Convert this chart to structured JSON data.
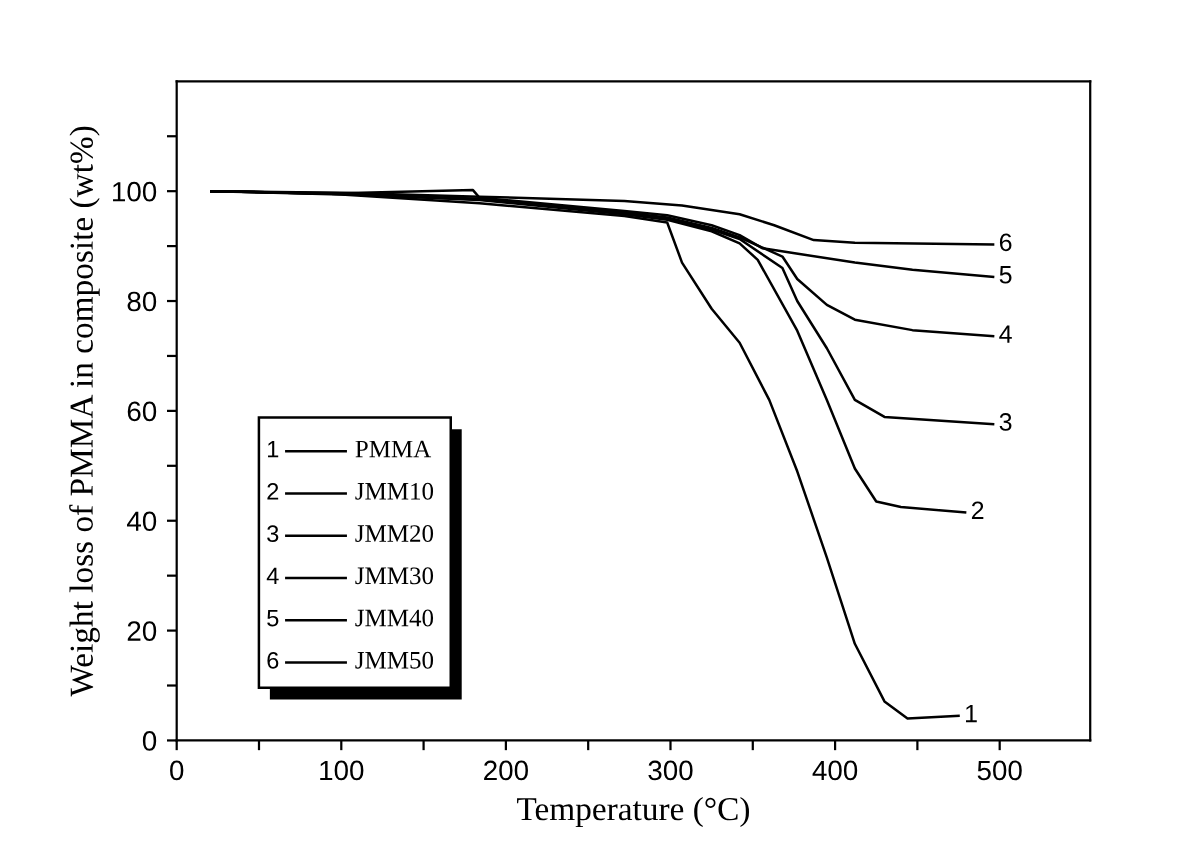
{
  "chart_data": {
    "type": "line",
    "xlabel": "Temperature (°C)",
    "ylabel": "Weight loss of PMMA in composite (wt%)",
    "xlim": [
      0,
      555
    ],
    "ylim": [
      0,
      120
    ],
    "xticks": [
      0,
      {
        "value": 50,
        "label": null
      },
      100,
      {
        "value": 150,
        "label": null
      },
      200,
      {
        "value": 250,
        "label": null
      },
      300,
      {
        "value": 350,
        "label": null
      },
      400,
      {
        "value": 450,
        "label": null
      },
      500
    ],
    "yticks": [
      0,
      {
        "value": 10,
        "label": null
      },
      20,
      {
        "value": 30,
        "label": null
      },
      40,
      {
        "value": 50,
        "label": null
      },
      60,
      {
        "value": 70,
        "label": null
      },
      80,
      {
        "value": 90,
        "label": null
      },
      100,
      {
        "value": 110,
        "label": null
      }
    ],
    "grid": false,
    "legend": "bottom left",
    "marker": "none",
    "line_style": "solid",
    "series": [
      {
        "name": "PMMA",
        "color": "#000000",
        "x": [
          21,
          100,
          184,
          272,
          298,
          307,
          325,
          342,
          360,
          377,
          395,
          412,
          430,
          444,
          475
        ],
        "values": [
          100,
          99.4,
          97.8,
          95.5,
          94.3,
          87,
          78.6,
          72.4,
          62,
          49,
          33.3,
          17.6,
          7.1,
          4,
          4.5
        ]
      },
      {
        "name": "JMM10",
        "color": "#000000",
        "x": [
          21,
          100,
          184,
          272,
          298,
          325,
          342,
          353,
          377,
          395,
          412,
          425,
          440,
          479
        ],
        "values": [
          100,
          99.5,
          98.4,
          95.8,
          94.8,
          92.7,
          90.5,
          87.5,
          74.6,
          62,
          49.5,
          43.5,
          42.5,
          41.5
        ]
      },
      {
        "name": "JMM20",
        "color": "#000000",
        "x": [
          21,
          100,
          184,
          272,
          298,
          325,
          342,
          368,
          377,
          395,
          412,
          430,
          496
        ],
        "values": [
          100,
          99.5,
          98.5,
          96,
          95,
          93,
          91.3,
          86,
          80,
          71.4,
          62,
          58.9,
          57.6
        ]
      },
      {
        "name": "JMM30",
        "color": "#000000",
        "x": [
          21,
          100,
          184,
          272,
          298,
          325,
          342,
          368,
          377,
          395,
          412,
          447,
          496
        ],
        "values": [
          100,
          99.5,
          98.6,
          96.1,
          95.2,
          93.3,
          91.6,
          88.1,
          84,
          79.3,
          76.6,
          74.7,
          73.6
        ]
      },
      {
        "name": "JMM40",
        "color": "#000000",
        "x": [
          21,
          100,
          180,
          184,
          272,
          298,
          325,
          342,
          356,
          412,
          447,
          496
        ],
        "values": [
          100,
          99.6,
          100.2,
          98.8,
          96.4,
          95.6,
          93.8,
          92,
          89.6,
          87,
          85.7,
          84.4
        ]
      },
      {
        "name": "JMM50",
        "color": "#000000",
        "x": [
          21,
          100,
          184,
          272,
          307,
          342,
          363,
          387,
          412,
          496
        ],
        "values": [
          100,
          99.7,
          99,
          98.2,
          97.4,
          95.8,
          93.8,
          91.1,
          90.6,
          90.3
        ]
      }
    ],
    "annotations": [
      {
        "text": "1",
        "x": 475,
        "y": 4.5
      },
      {
        "text": "2",
        "x": 479,
        "y": 41.5
      },
      {
        "text": "3",
        "x": 496,
        "y": 57.6
      },
      {
        "text": "4",
        "x": 496,
        "y": 73.6
      },
      {
        "text": "5",
        "x": 496,
        "y": 84.4
      },
      {
        "text": "6",
        "x": 496,
        "y": 90.3
      }
    ]
  }
}
